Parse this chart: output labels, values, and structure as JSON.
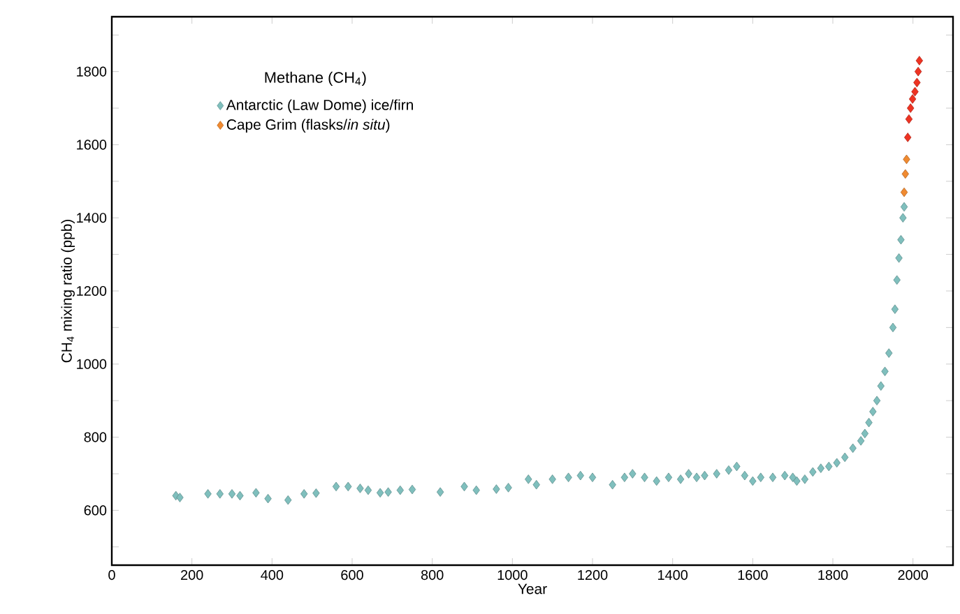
{
  "chart_data": {
    "type": "scatter",
    "xlabel": "Year",
    "ylabel": "CH$_{4}$ mixing ratio (ppb)",
    "legend_title": "Methane (CH$_{4}$)",
    "xlim": [
      0,
      2100
    ],
    "xticks": [
      0,
      200,
      400,
      600,
      800,
      1000,
      1200,
      1400,
      1600,
      1800,
      2000
    ],
    "ylim": [
      450,
      1950
    ],
    "yticks": [
      {
        "value": 500,
        "label": null
      },
      600,
      {
        "value": 700,
        "label": null
      },
      800,
      {
        "value": 900,
        "label": null
      },
      1000,
      {
        "value": 1100,
        "label": null
      },
      1200,
      {
        "value": 1300,
        "label": null
      },
      1400,
      {
        "value": 1500,
        "label": null
      },
      1600,
      {
        "value": 1700,
        "label": null
      },
      1800,
      {
        "value": 1900,
        "label": null
      }
    ],
    "marker": "diamond",
    "legend": "top left",
    "grid": false,
    "series": [
      {
        "name": "Antarctic (Law Dome) ice/firn",
        "color": "#7fbfbd",
        "x": [
          160,
          170,
          240,
          270,
          300,
          320,
          360,
          390,
          440,
          480,
          510,
          560,
          590,
          620,
          640,
          670,
          690,
          720,
          750,
          820,
          880,
          910,
          960,
          990,
          1040,
          1060,
          1100,
          1140,
          1170,
          1200,
          1250,
          1280,
          1300,
          1330,
          1360,
          1390,
          1420,
          1440,
          1460,
          1480,
          1510,
          1540,
          1560,
          1580,
          1600,
          1620,
          1650,
          1680,
          1700,
          1710,
          1730,
          1750,
          1770,
          1790,
          1810,
          1830,
          1850,
          1870,
          1880,
          1890,
          1900,
          1910,
          1920,
          1930,
          1940,
          1950,
          1955,
          1960,
          1965,
          1970,
          1975,
          1978
        ],
        "values": [
          640,
          635,
          645,
          645,
          645,
          640,
          648,
          632,
          628,
          645,
          647,
          665,
          665,
          660,
          655,
          648,
          650,
          655,
          657,
          650,
          665,
          655,
          658,
          662,
          685,
          670,
          685,
          690,
          695,
          690,
          670,
          690,
          700,
          690,
          680,
          690,
          685,
          700,
          690,
          695,
          700,
          710,
          720,
          695,
          680,
          690,
          690,
          695,
          690,
          680,
          685,
          705,
          715,
          720,
          730,
          745,
          770,
          790,
          810,
          840,
          870,
          900,
          940,
          980,
          1030,
          1100,
          1150,
          1230,
          1290,
          1340,
          1400,
          1430
        ]
      },
      {
        "name": "Cape Grim (flasks/*in situ*)",
        "color": "#f08a30",
        "colors": [
          "#f08a30",
          "#f08a30",
          "#f08a30",
          "#ee3322",
          "#ee3322",
          "#ee3322",
          "#ee3322",
          "#ee3322",
          "#ee3322",
          "#ee3322",
          "#ee3322"
        ],
        "x": [
          1978,
          1981,
          1984,
          1987,
          1990,
          1994,
          1999,
          2005,
          2010,
          2013,
          2016
        ],
        "values": [
          1470,
          1520,
          1560,
          1620,
          1670,
          1700,
          1725,
          1745,
          1770,
          1800,
          1830
        ]
      }
    ]
  }
}
